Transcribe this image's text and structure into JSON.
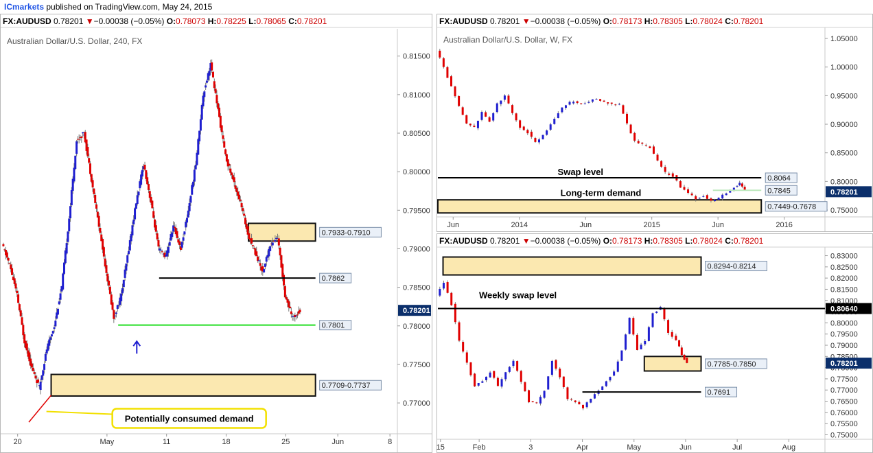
{
  "header": {
    "publisher": "ICmarkets",
    "published_text": "published on TradingView.com, May 24, 2015"
  },
  "colors": {
    "bull": "#1f1fd0",
    "bear": "#e00000",
    "zone_fill": "#fbe8b0",
    "green_line": "#22dd22",
    "label_bg": "#eaf0f8",
    "price_tag": "#0b2f6b"
  },
  "chart_data": [
    {
      "id": "h4",
      "type": "candlestick",
      "symbol_line": {
        "symbol": "FX:AUDUSD",
        "last": "0.78201",
        "change": "−0.00038 (−0.05%)",
        "o": "0.78073",
        "h": "0.78225",
        "l": "0.78065",
        "c": "0.78201"
      },
      "title": "Australian Dollar/U.S. Dollar, 240, FX",
      "ylim": [
        0.766,
        0.818
      ],
      "y_ticks": [
        0.77,
        0.775,
        0.78,
        0.785,
        0.79,
        0.795,
        0.8,
        0.805,
        0.81,
        0.815
      ],
      "y_tick_labels": [
        "0.77000",
        "0.77500",
        "0.78000",
        "0.78500",
        "0.79000",
        "0.79500",
        "0.80000",
        "0.80500",
        "0.81000",
        "0.81500"
      ],
      "x_ticks": [
        {
          "t": 2,
          "label": "20"
        },
        {
          "t": 14,
          "label": "May"
        },
        {
          "t": 22,
          "label": "11"
        },
        {
          "t": 30,
          "label": "18"
        },
        {
          "t": 38,
          "label": "25"
        },
        {
          "t": 45,
          "label": "Jun"
        },
        {
          "t": 52,
          "label": "8"
        }
      ],
      "xlim": [
        0,
        53
      ],
      "path": [
        [
          0,
          0.7905
        ],
        [
          1,
          0.788
        ],
        [
          2,
          0.784
        ],
        [
          3,
          0.778
        ],
        [
          4,
          0.7745
        ],
        [
          5,
          0.772
        ],
        [
          6,
          0.777
        ],
        [
          7,
          0.78
        ],
        [
          8,
          0.785
        ],
        [
          9,
          0.794
        ],
        [
          10,
          0.804
        ],
        [
          11,
          0.805
        ],
        [
          12,
          0.799
        ],
        [
          13,
          0.793
        ],
        [
          14,
          0.787
        ],
        [
          15,
          0.781
        ],
        [
          16,
          0.784
        ],
        [
          17,
          0.79
        ],
        [
          18,
          0.796
        ],
        [
          19,
          0.801
        ],
        [
          20,
          0.796
        ],
        [
          21,
          0.79
        ],
        [
          22,
          0.789
        ],
        [
          23,
          0.793
        ],
        [
          24,
          0.79
        ],
        [
          25,
          0.795
        ],
        [
          26,
          0.801
        ],
        [
          27,
          0.81
        ],
        [
          28,
          0.814
        ],
        [
          29,
          0.808
        ],
        [
          30,
          0.802
        ],
        [
          31,
          0.799
        ],
        [
          32,
          0.796
        ],
        [
          33,
          0.792
        ],
        [
          34,
          0.7895
        ],
        [
          35,
          0.787
        ],
        [
          36,
          0.7905
        ],
        [
          37,
          0.7915
        ],
        [
          38,
          0.784
        ],
        [
          39,
          0.781
        ],
        [
          40,
          0.782
        ]
      ],
      "zones": [
        {
          "label": "0.7933-0.7910",
          "y1": 0.7933,
          "y2": 0.791,
          "x1": 33,
          "x2": 42
        },
        {
          "label": "0.7709-0.7737",
          "y1": 0.7737,
          "y2": 0.7709,
          "x1": 6.5,
          "x2": 42
        }
      ],
      "lines": [
        {
          "label": "0.7862",
          "y": 0.7862,
          "x1": 21,
          "x2": 42,
          "color": "#000000"
        },
        {
          "label": "0.7801",
          "y": 0.7801,
          "x1": 15.5,
          "x2": 42,
          "color": "#22dd22"
        }
      ],
      "current_price": {
        "label": "0.78201",
        "y": 0.78201
      },
      "annotations": [
        {
          "text": "Potentially consumed demand",
          "x": 5.5,
          "y": 0.768
        }
      ],
      "marker": {
        "x": 18,
        "y": 0.778
      },
      "trend": [
        [
          3.5,
          0.7675
        ],
        [
          6.5,
          0.771
        ]
      ]
    },
    {
      "id": "weekly",
      "type": "candlestick",
      "symbol_line": {
        "symbol": "FX:AUDUSD",
        "last": "0.78201",
        "change": "−0.00038 (−0.05%)",
        "o": "0.78173",
        "h": "0.78305",
        "l": "0.78024",
        "c": "0.78201"
      },
      "title": "Australian Dollar/U.S. Dollar, W, FX",
      "ylim": [
        0.738,
        1.062
      ],
      "y_ticks": [
        0.75,
        0.8,
        0.85,
        0.9,
        0.95,
        1.0,
        1.05
      ],
      "y_tick_labels": [
        "0.75000",
        "0.80000",
        "0.85000",
        "0.90000",
        "0.95000",
        "1.00000",
        "1.05000"
      ],
      "x_ticks": [
        {
          "t": 6,
          "label": "Jun"
        },
        {
          "t": 32,
          "label": "2014"
        },
        {
          "t": 58,
          "label": "Jun"
        },
        {
          "t": 84,
          "label": "2015"
        },
        {
          "t": 110,
          "label": "Jun"
        },
        {
          "t": 136,
          "label": "2016"
        }
      ],
      "xlim": [
        0,
        152
      ],
      "path": [
        [
          0,
          1.03
        ],
        [
          3,
          1.0
        ],
        [
          6,
          0.965
        ],
        [
          9,
          0.93
        ],
        [
          12,
          0.9
        ],
        [
          15,
          0.895
        ],
        [
          18,
          0.92
        ],
        [
          21,
          0.905
        ],
        [
          24,
          0.935
        ],
        [
          27,
          0.95
        ],
        [
          30,
          0.92
        ],
        [
          33,
          0.895
        ],
        [
          36,
          0.885
        ],
        [
          39,
          0.87
        ],
        [
          42,
          0.88
        ],
        [
          45,
          0.9
        ],
        [
          48,
          0.92
        ],
        [
          51,
          0.935
        ],
        [
          54,
          0.94
        ],
        [
          57,
          0.935
        ],
        [
          60,
          0.94
        ],
        [
          63,
          0.945
        ],
        [
          66,
          0.94
        ],
        [
          69,
          0.935
        ],
        [
          72,
          0.935
        ],
        [
          75,
          0.9
        ],
        [
          78,
          0.87
        ],
        [
          81,
          0.865
        ],
        [
          84,
          0.86
        ],
        [
          87,
          0.835
        ],
        [
          90,
          0.815
        ],
        [
          93,
          0.81
        ],
        [
          96,
          0.79
        ],
        [
          99,
          0.78
        ],
        [
          102,
          0.77
        ],
        [
          105,
          0.775
        ],
        [
          108,
          0.765
        ],
        [
          111,
          0.77
        ],
        [
          114,
          0.78
        ],
        [
          117,
          0.79
        ],
        [
          119,
          0.798
        ],
        [
          121,
          0.785
        ]
      ],
      "zones": [
        {
          "label": "0.7449-0.7678",
          "y1": 0.7678,
          "y2": 0.7449,
          "x1": 0,
          "x2": 127
        }
      ],
      "lines": [
        {
          "label": "0.8064",
          "y": 0.8064,
          "x1": 0,
          "x2": 127,
          "color": "#000000"
        },
        {
          "label": "0.7845",
          "y": 0.7845,
          "x1": 108,
          "x2": 127,
          "color": "#bde8bd"
        }
      ],
      "current_price": {
        "label": "0.78201",
        "y": 0.78201
      },
      "annotations": [
        {
          "text": "Swap level",
          "x": 56,
          "y": 0.811
        },
        {
          "text": "Long-term demand",
          "x": 64,
          "y": 0.7748
        }
      ]
    },
    {
      "id": "daily",
      "type": "candlestick",
      "symbol_line": {
        "symbol": "FX:AUDUSD",
        "last": "0.78201",
        "change": "−0.00038 (−0.05%)",
        "o": "0.78173",
        "h": "0.78305",
        "l": "0.78024",
        "c": "0.78201"
      },
      "title": "Australian Dollar/U.S. Dollar, D, FX",
      "ylim": [
        0.748,
        0.832
      ],
      "y_ticks": [
        0.75,
        0.755,
        0.76,
        0.765,
        0.77,
        0.775,
        0.78,
        0.785,
        0.79,
        0.795,
        0.8,
        0.805,
        0.81,
        0.815,
        0.82,
        0.825,
        0.83
      ],
      "y_tick_labels": [
        "0.75000",
        "0.75500",
        "0.76000",
        "0.76500",
        "0.77000",
        "0.77500",
        "0.78000",
        "0.78500",
        "0.79000",
        "0.79500",
        "0.80000",
        "0.80500",
        "0.81000",
        "0.81500",
        "0.82000",
        "0.82500",
        "0.83000"
      ],
      "x_ticks": [
        {
          "t": 1,
          "label": "15"
        },
        {
          "t": 16,
          "label": "Feb"
        },
        {
          "t": 36,
          "label": "3"
        },
        {
          "t": 56,
          "label": "Apr"
        },
        {
          "t": 76,
          "label": "May"
        },
        {
          "t": 96,
          "label": "Jun"
        },
        {
          "t": 116,
          "label": "Jul"
        },
        {
          "t": 136,
          "label": "Aug"
        }
      ],
      "xlim": [
        0,
        150
      ],
      "path": [
        [
          0,
          0.812
        ],
        [
          3,
          0.818
        ],
        [
          6,
          0.808
        ],
        [
          9,
          0.792
        ],
        [
          12,
          0.782
        ],
        [
          15,
          0.772
        ],
        [
          18,
          0.774
        ],
        [
          21,
          0.778
        ],
        [
          24,
          0.772
        ],
        [
          27,
          0.778
        ],
        [
          30,
          0.783
        ],
        [
          33,
          0.774
        ],
        [
          36,
          0.765
        ],
        [
          39,
          0.764
        ],
        [
          42,
          0.77
        ],
        [
          45,
          0.783
        ],
        [
          48,
          0.776
        ],
        [
          51,
          0.766
        ],
        [
          54,
          0.765
        ],
        [
          57,
          0.762
        ],
        [
          60,
          0.766
        ],
        [
          63,
          0.77
        ],
        [
          66,
          0.774
        ],
        [
          69,
          0.778
        ],
        [
          72,
          0.788
        ],
        [
          75,
          0.802
        ],
        [
          78,
          0.788
        ],
        [
          81,
          0.792
        ],
        [
          84,
          0.804
        ],
        [
          87,
          0.807
        ],
        [
          90,
          0.796
        ],
        [
          93,
          0.792
        ],
        [
          95,
          0.786
        ],
        [
          97,
          0.782
        ]
      ],
      "zones": [
        {
          "label": "0.8294-0.8214",
          "y1": 0.8294,
          "y2": 0.8214,
          "x1": 2,
          "x2": 102
        },
        {
          "label": "0.7785-0.7850",
          "y1": 0.785,
          "y2": 0.7785,
          "x1": 80,
          "x2": 102
        }
      ],
      "lines": [
        {
          "label": "0.80640",
          "y": 0.8064,
          "x1": 0,
          "x2": 150,
          "color": "#000000",
          "tag": true
        },
        {
          "label": "0.7691",
          "y": 0.7691,
          "x1": 56,
          "x2": 102,
          "color": "#000000"
        }
      ],
      "current_price": {
        "label": "0.78201",
        "y": 0.78201
      },
      "annotations": [
        {
          "text": "Weekly swap level",
          "x": 31,
          "y": 0.811
        }
      ]
    }
  ]
}
